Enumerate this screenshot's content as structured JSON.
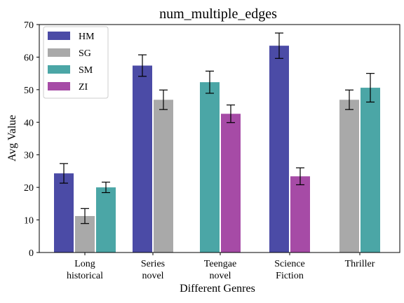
{
  "chart_data": {
    "type": "bar",
    "title": "num_multiple_edges",
    "xlabel": "Different Genres",
    "ylabel": "Avg Value",
    "ylim": [
      0,
      70
    ],
    "yticks": [
      0,
      10,
      20,
      30,
      40,
      50,
      60,
      70
    ],
    "grid": false,
    "legend_position": "top-left",
    "categories": [
      [
        "Long",
        "historical"
      ],
      [
        "Series",
        "novel"
      ],
      [
        "Teengae",
        "novel"
      ],
      [
        "Science",
        "Fiction"
      ],
      [
        "Thriller"
      ]
    ],
    "series": [
      {
        "name": "HM",
        "color": "#4b4ba6",
        "values": [
          24.3,
          57.4,
          null,
          63.5,
          null
        ],
        "errors": [
          3.0,
          3.3,
          null,
          3.9,
          null
        ]
      },
      {
        "name": "SG",
        "color": "#a9a9a9",
        "values": [
          11.2,
          46.9,
          null,
          null,
          46.9
        ],
        "errors": [
          2.3,
          3.0,
          null,
          null,
          3.0
        ]
      },
      {
        "name": "SM",
        "color": "#4ba6a6",
        "values": [
          20.0,
          null,
          52.3,
          null,
          50.6
        ],
        "errors": [
          1.6,
          null,
          3.4,
          null,
          4.4
        ]
      },
      {
        "name": "ZI",
        "color": "#a64ba6",
        "values": [
          null,
          null,
          42.6,
          23.4,
          null
        ],
        "errors": [
          null,
          null,
          2.7,
          2.6,
          null
        ]
      }
    ]
  }
}
